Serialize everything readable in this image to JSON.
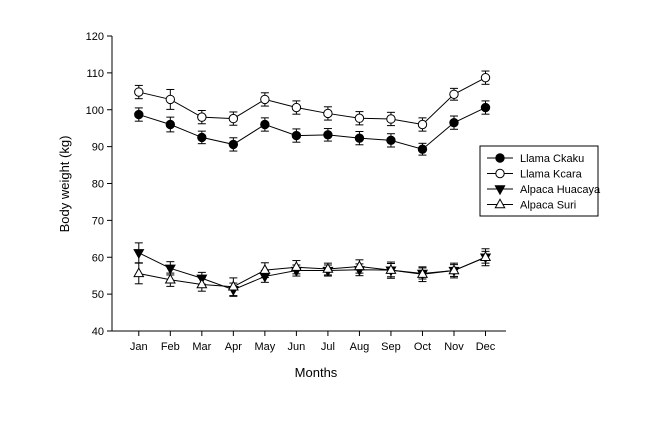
{
  "chart_data": {
    "type": "line",
    "xlabel": "Months",
    "ylabel": "Body weight (kg)",
    "categories": [
      "Jan",
      "Feb",
      "Mar",
      "Apr",
      "May",
      "Jun",
      "Jul",
      "Aug",
      "Sep",
      "Oct",
      "Nov",
      "Dec"
    ],
    "ylim": [
      40,
      120
    ],
    "yticks": [
      40,
      50,
      60,
      70,
      80,
      90,
      100,
      110,
      120
    ],
    "grid": false,
    "legend_position": "right",
    "series": [
      {
        "name": "Llama Ckaku",
        "marker": "circle-filled",
        "values": [
          98.7,
          96.0,
          92.5,
          90.6,
          96.0,
          93.0,
          93.2,
          92.3,
          91.7,
          89.3,
          96.5,
          100.6
        ],
        "errors": [
          1.8,
          2.0,
          1.7,
          1.8,
          1.8,
          1.8,
          1.7,
          1.8,
          1.8,
          1.6,
          1.8,
          1.8
        ]
      },
      {
        "name": "Llama Kcara",
        "marker": "circle-open",
        "values": [
          104.8,
          102.8,
          98.0,
          97.6,
          102.8,
          100.6,
          99.0,
          97.7,
          97.5,
          96.0,
          104.2,
          108.7
        ],
        "errors": [
          1.8,
          2.7,
          1.8,
          1.8,
          1.8,
          1.8,
          1.8,
          1.8,
          1.8,
          1.8,
          1.6,
          1.8
        ]
      },
      {
        "name": "Alpaca Huacaya",
        "marker": "triangle-down-filled",
        "values": [
          61.2,
          57.0,
          54.3,
          51.2,
          54.8,
          56.4,
          56.4,
          56.6,
          56.5,
          55.6,
          56.4,
          60.0
        ],
        "errors": [
          2.7,
          1.8,
          1.6,
          1.8,
          1.6,
          1.5,
          1.5,
          1.6,
          1.8,
          1.5,
          1.6,
          2.3
        ]
      },
      {
        "name": "Alpaca Suri",
        "marker": "triangle-up-open",
        "values": [
          55.6,
          53.9,
          52.6,
          52.0,
          56.5,
          57.3,
          56.8,
          57.5,
          56.5,
          55.4,
          56.4,
          60.0
        ],
        "errors": [
          2.8,
          1.8,
          1.8,
          2.4,
          2.0,
          1.8,
          1.6,
          1.8,
          2.2,
          2.0,
          2.0,
          1.6
        ]
      }
    ]
  }
}
